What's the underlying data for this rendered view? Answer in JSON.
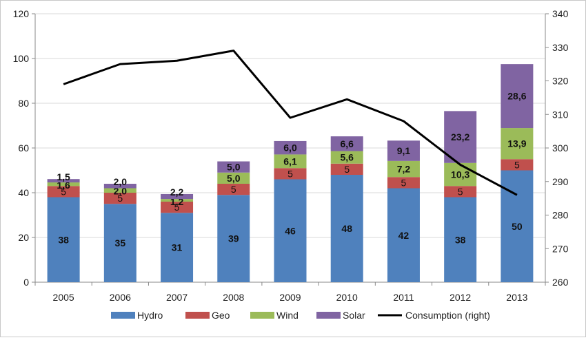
{
  "chart_data": {
    "type": "bar",
    "stacked": true,
    "categories": [
      "2005",
      "2006",
      "2007",
      "2008",
      "2009",
      "2010",
      "2011",
      "2012",
      "2013"
    ],
    "series": [
      {
        "name": "Hydro",
        "color": "#4f81bd",
        "values": [
          38,
          35,
          31,
          39,
          46,
          48,
          42,
          38,
          50
        ],
        "labels": [
          "38",
          "35",
          "31",
          "39",
          "46",
          "48",
          "42",
          "38",
          "50"
        ]
      },
      {
        "name": "Geo",
        "color": "#c0504d",
        "values": [
          5,
          5,
          5,
          5,
          5,
          5,
          5,
          5,
          5
        ],
        "labels": [
          "5",
          "5",
          "5",
          "5",
          "5",
          "5",
          "5",
          "5",
          "5"
        ]
      },
      {
        "name": "Wind",
        "color": "#9bbb59",
        "values": [
          1.6,
          2.0,
          1.2,
          5.0,
          6.1,
          5.6,
          7.2,
          10.3,
          13.9
        ],
        "labels": [
          "1,6",
          "2,0",
          "1,2",
          "5,0",
          "6,1",
          "5,6",
          "7,2",
          "10,3",
          "13,9"
        ]
      },
      {
        "name": "Solar",
        "color": "#8064a2",
        "values": [
          1.5,
          2.0,
          2.2,
          5.0,
          6.0,
          6.6,
          9.1,
          23.2,
          28.6
        ],
        "labels": [
          "1,5",
          "2,0",
          "2,2",
          "5,0",
          "6,0",
          "6,6",
          "9,1",
          "23,2",
          "28,6"
        ]
      }
    ],
    "line_series": {
      "name": "Consumption (right)",
      "color": "#000000",
      "axis": "right",
      "values": [
        319,
        325,
        326,
        329,
        309,
        314.5,
        308,
        295,
        286
      ]
    },
    "y_left": {
      "min": 0,
      "max": 120,
      "ticks": [
        "0",
        "20",
        "40",
        "60",
        "80",
        "100",
        "120"
      ]
    },
    "y_right": {
      "min": 260,
      "max": 340,
      "ticks": [
        "260",
        "270",
        "280",
        "290",
        "300",
        "310",
        "320",
        "330",
        "340"
      ]
    },
    "grid": true,
    "legend_position": "bottom"
  }
}
